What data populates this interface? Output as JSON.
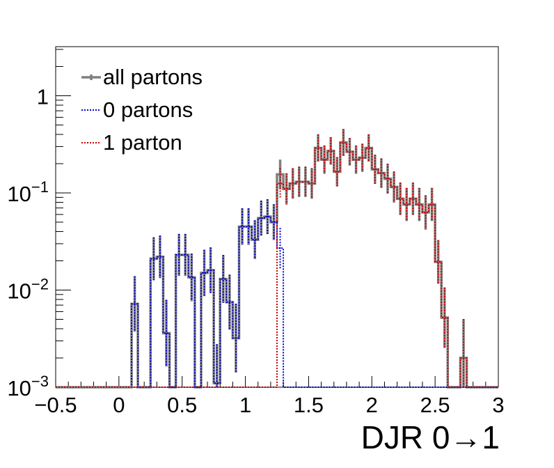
{
  "chart_data": {
    "type": "histogram",
    "xlabel": "DJR 0→1",
    "ylabel": "",
    "xlim": [
      -0.5,
      3.0
    ],
    "ylim": [
      0.001,
      3.2
    ],
    "yscale": "log",
    "grid": false,
    "legend_placement": "top-left",
    "x_ticks": [
      "−0.5",
      "0",
      "0.5",
      "1",
      "1.5",
      "2",
      "2.5",
      "3"
    ],
    "x_tick_values": [
      -0.5,
      0,
      0.5,
      1,
      1.5,
      2,
      2.5,
      3
    ],
    "y_ticks": [
      {
        "value": 0.001,
        "base": "10",
        "exp": "−3"
      },
      {
        "value": 0.01,
        "base": "10",
        "exp": "−2"
      },
      {
        "value": 0.1,
        "base": "10",
        "exp": "−1"
      },
      {
        "value": 1,
        "base": "1",
        "exp": ""
      }
    ],
    "bin_width": 0.05,
    "series": [
      {
        "name": "all partons",
        "color": "#808080",
        "style": "solid",
        "bins": [
          [
            0.1,
            0.0072
          ],
          [
            0.15,
            0.001
          ],
          [
            0.2,
            0.001
          ],
          [
            0.25,
            0.021
          ],
          [
            0.3,
            0.022
          ],
          [
            0.35,
            0.0036
          ],
          [
            0.4,
            0.001
          ],
          [
            0.45,
            0.023
          ],
          [
            0.5,
            0.023
          ],
          [
            0.55,
            0.0135
          ],
          [
            0.6,
            0.001
          ],
          [
            0.65,
            0.015
          ],
          [
            0.7,
            0.016
          ],
          [
            0.75,
            0.0011
          ],
          [
            0.8,
            0.013
          ],
          [
            0.85,
            0.0075
          ],
          [
            0.9,
            0.0032
          ],
          [
            0.95,
            0.045
          ],
          [
            1.0,
            0.045
          ],
          [
            1.05,
            0.033
          ],
          [
            1.1,
            0.055
          ],
          [
            1.15,
            0.057
          ],
          [
            1.2,
            0.05
          ],
          [
            1.25,
            0.155
          ],
          [
            1.3,
            0.11
          ],
          [
            1.35,
            0.125
          ],
          [
            1.4,
            0.13
          ],
          [
            1.45,
            0.13
          ],
          [
            1.5,
            0.125
          ],
          [
            1.55,
            0.29
          ],
          [
            1.6,
            0.22
          ],
          [
            1.65,
            0.27
          ],
          [
            1.7,
            0.165
          ],
          [
            1.75,
            0.33
          ],
          [
            1.8,
            0.265
          ],
          [
            1.85,
            0.22
          ],
          [
            1.9,
            0.23
          ],
          [
            1.95,
            0.29
          ],
          [
            2.0,
            0.175
          ],
          [
            2.05,
            0.16
          ],
          [
            2.1,
            0.14
          ],
          [
            2.15,
            0.115
          ],
          [
            2.2,
            0.087
          ],
          [
            2.25,
            0.076
          ],
          [
            2.3,
            0.087
          ],
          [
            2.35,
            0.076
          ],
          [
            2.4,
            0.063
          ],
          [
            2.45,
            0.076
          ],
          [
            2.5,
            0.0195
          ],
          [
            2.55,
            0.0052
          ],
          [
            2.6,
            0.001
          ],
          [
            2.65,
            0.001
          ],
          [
            2.7,
            0.002
          ],
          [
            2.75,
            0.001
          ]
        ]
      },
      {
        "name": "0 partons",
        "color": "#0000cc",
        "style": "dotted",
        "bins": [
          [
            0.1,
            0.0072
          ],
          [
            0.15,
            0.001
          ],
          [
            0.2,
            0.001
          ],
          [
            0.25,
            0.021
          ],
          [
            0.3,
            0.022
          ],
          [
            0.35,
            0.0036
          ],
          [
            0.4,
            0.001
          ],
          [
            0.45,
            0.023
          ],
          [
            0.5,
            0.023
          ],
          [
            0.55,
            0.0135
          ],
          [
            0.6,
            0.001
          ],
          [
            0.65,
            0.015
          ],
          [
            0.7,
            0.016
          ],
          [
            0.75,
            0.0011
          ],
          [
            0.8,
            0.013
          ],
          [
            0.85,
            0.0075
          ],
          [
            0.9,
            0.0032
          ],
          [
            0.95,
            0.045
          ],
          [
            1.0,
            0.045
          ],
          [
            1.05,
            0.033
          ],
          [
            1.1,
            0.055
          ],
          [
            1.15,
            0.057
          ],
          [
            1.2,
            0.05
          ],
          [
            1.25,
            0.027
          ],
          [
            1.3,
            0.001
          ]
        ]
      },
      {
        "name": "1 parton",
        "color": "#cc0000",
        "style": "dotted",
        "bins": [
          [
            1.25,
            0.125
          ],
          [
            1.3,
            0.11
          ],
          [
            1.35,
            0.125
          ],
          [
            1.4,
            0.13
          ],
          [
            1.45,
            0.13
          ],
          [
            1.5,
            0.125
          ],
          [
            1.55,
            0.29
          ],
          [
            1.6,
            0.22
          ],
          [
            1.65,
            0.27
          ],
          [
            1.7,
            0.165
          ],
          [
            1.75,
            0.33
          ],
          [
            1.8,
            0.265
          ],
          [
            1.85,
            0.22
          ],
          [
            1.9,
            0.23
          ],
          [
            1.95,
            0.29
          ],
          [
            2.0,
            0.175
          ],
          [
            2.05,
            0.16
          ],
          [
            2.1,
            0.14
          ],
          [
            2.15,
            0.115
          ],
          [
            2.2,
            0.087
          ],
          [
            2.25,
            0.076
          ],
          [
            2.3,
            0.087
          ],
          [
            2.35,
            0.076
          ],
          [
            2.4,
            0.063
          ],
          [
            2.45,
            0.076
          ],
          [
            2.5,
            0.0195
          ],
          [
            2.55,
            0.0052
          ],
          [
            2.6,
            0.001
          ],
          [
            2.65,
            0.001
          ],
          [
            2.7,
            0.002
          ],
          [
            2.75,
            0.001
          ]
        ]
      }
    ]
  }
}
